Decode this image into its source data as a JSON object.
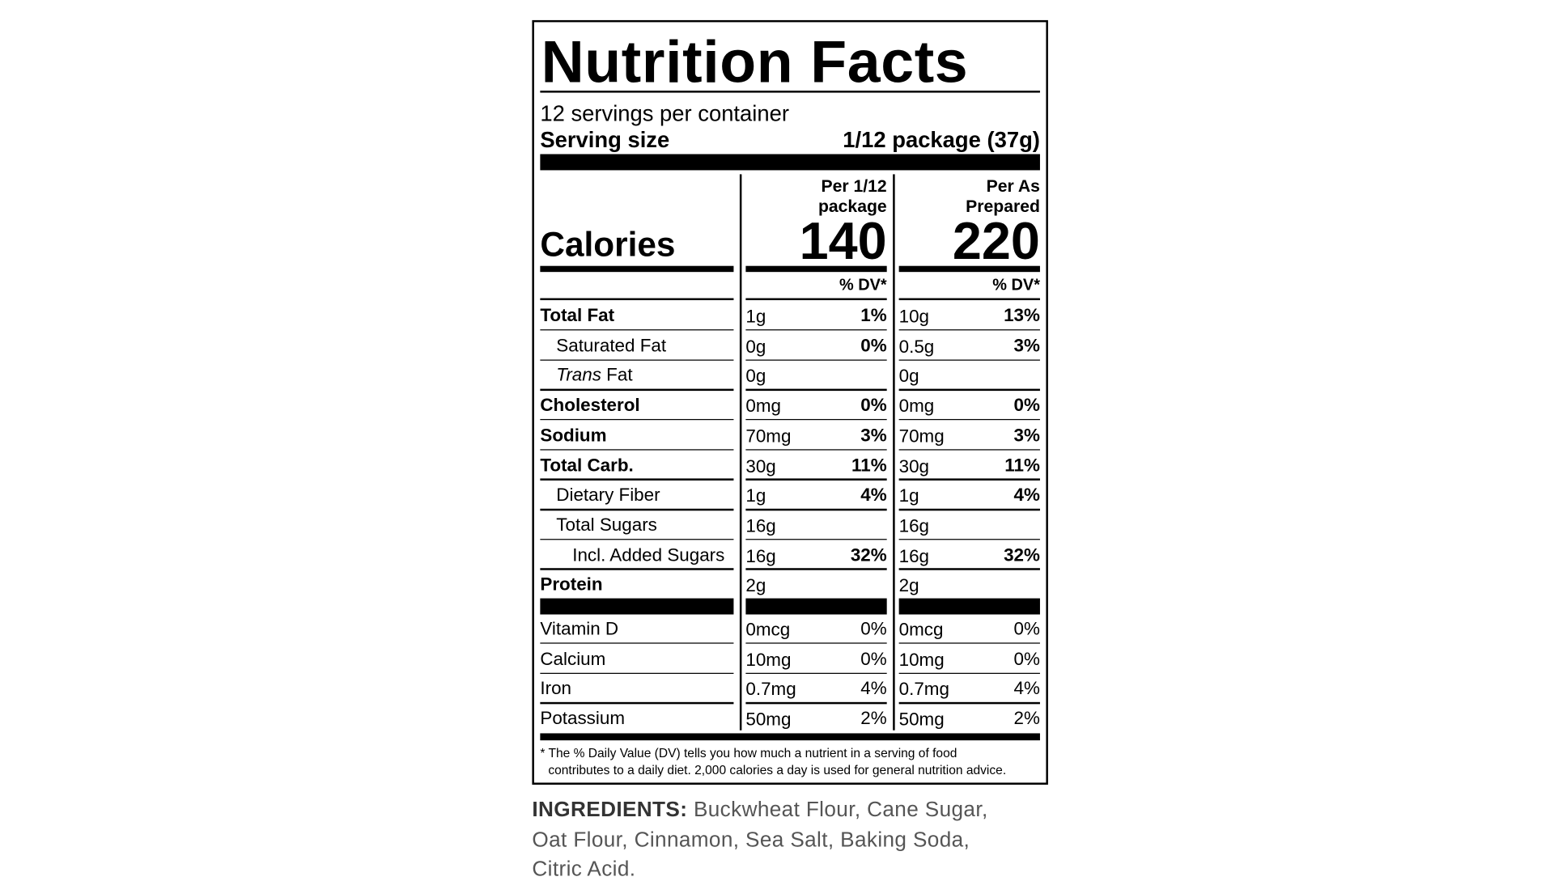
{
  "label": {
    "title": "Nutrition Facts",
    "servings": "12 servings per container",
    "serving_size_label": "Serving size",
    "serving_size": "1/12 package (37g)",
    "calories_label": "Calories",
    "columns": [
      {
        "header": [
          "Per 1/12",
          "package"
        ],
        "calories": "140"
      },
      {
        "header": [
          "Per As",
          "Prepared"
        ],
        "calories": "220"
      }
    ],
    "dv_header": "% DV*",
    "rows": [
      {
        "name": "Total Fat",
        "bold": true,
        "indent": 0,
        "values": [
          [
            "1g",
            "1%"
          ],
          [
            "10g",
            "13%"
          ]
        ]
      },
      {
        "name": "Saturated Fat",
        "bold": false,
        "indent": 1,
        "values": [
          [
            "0g",
            "0%"
          ],
          [
            "0.5g",
            "3%"
          ]
        ]
      },
      {
        "italic": "Trans",
        "name": "Fat",
        "bold": false,
        "indent": 1,
        "values": [
          [
            "0g",
            null
          ],
          [
            "0g",
            null
          ]
        ]
      },
      {
        "name": "Cholesterol",
        "bold": true,
        "indent": 0,
        "values": [
          [
            "0mg",
            "0%"
          ],
          [
            "0mg",
            "0%"
          ]
        ]
      },
      {
        "name": "Sodium",
        "bold": true,
        "indent": 0,
        "values": [
          [
            "70mg",
            "3%"
          ],
          [
            "70mg",
            "3%"
          ]
        ]
      },
      {
        "name": "Total Carb.",
        "bold": true,
        "indent": 0,
        "values": [
          [
            "30g",
            "11%"
          ],
          [
            "30g",
            "11%"
          ]
        ]
      },
      {
        "name": "Dietary Fiber",
        "bold": false,
        "indent": 1,
        "values": [
          [
            "1g",
            "4%"
          ],
          [
            "1g",
            "4%"
          ]
        ]
      },
      {
        "name": "Total Sugars",
        "bold": false,
        "indent": 1,
        "values": [
          [
            "16g",
            null
          ],
          [
            "16g",
            null
          ]
        ]
      },
      {
        "name": "Incl. Added Sugars",
        "bold": false,
        "indent": 2,
        "values": [
          [
            "16g",
            "32%"
          ],
          [
            "16g",
            "32%"
          ]
        ]
      },
      {
        "name": "Protein",
        "bold": true,
        "indent": 0,
        "values": [
          [
            "2g",
            null
          ],
          [
            "2g",
            null
          ]
        ]
      }
    ],
    "vitamins": [
      {
        "name": "Vitamin D",
        "values": [
          [
            "0mcg",
            "0%"
          ],
          [
            "0mcg",
            "0%"
          ]
        ]
      },
      {
        "name": "Calcium",
        "values": [
          [
            "10mg",
            "0%"
          ],
          [
            "10mg",
            "0%"
          ]
        ]
      },
      {
        "name": "Iron",
        "values": [
          [
            "0.7mg",
            "4%"
          ],
          [
            "0.7mg",
            "4%"
          ]
        ]
      },
      {
        "name": "Potassium",
        "values": [
          [
            "50mg",
            "2%"
          ],
          [
            "50mg",
            "2%"
          ]
        ]
      }
    ],
    "footnote": [
      "* The % Daily Value (DV) tells you how much a nutrient in a serving of food",
      "contributes to a daily diet. 2,000 calories a day is used for general nutrition advice."
    ]
  },
  "ingredients": {
    "label": "INGREDIENTS:",
    "lines": [
      "Buckwheat Flour, Cane Sugar,",
      "Oat Flour, Cinnamon, Sea Salt, Baking Soda,",
      "Citric Acid."
    ]
  }
}
